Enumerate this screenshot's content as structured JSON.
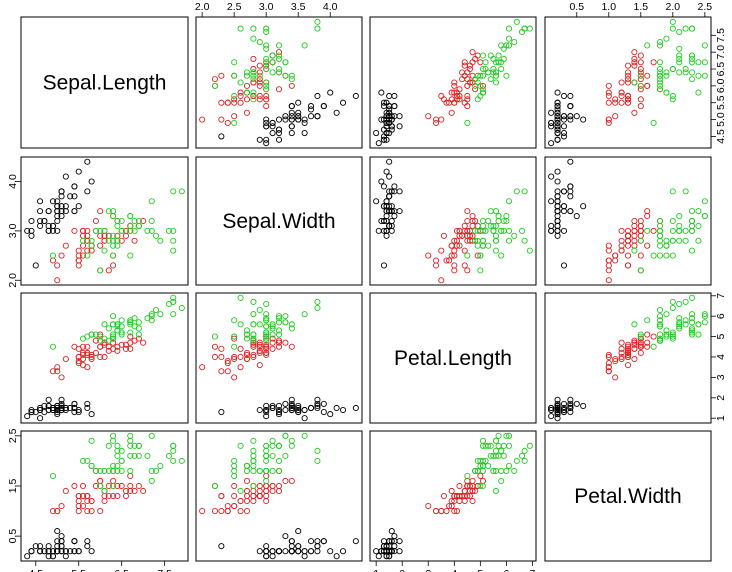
{
  "chart_data": {
    "type": "scatter",
    "layout": "pairs-matrix",
    "grid": false,
    "variables": [
      "Sepal.Length",
      "Sepal.Width",
      "Petal.Length",
      "Petal.Width"
    ],
    "ranges": {
      "Sepal.Length": [
        4.3,
        7.9
      ],
      "Sepal.Width": [
        2.0,
        4.4
      ],
      "Petal.Length": [
        1.0,
        6.9
      ],
      "Petal.Width": [
        0.1,
        2.5
      ]
    },
    "ticks": {
      "Sepal.Length": [
        4.5,
        5.5,
        6.5,
        7.5
      ],
      "Sepal.Width": [
        2.0,
        2.5,
        3.0,
        3.5,
        4.0
      ],
      "Petal.Length": [
        1,
        2,
        3,
        4,
        5,
        6,
        7
      ],
      "Petal.Width": [
        0.5,
        1.0,
        1.5,
        2.0,
        2.5
      ]
    },
    "tick_labels": {
      "top": {
        "Sepal.Width": [
          "2.0",
          "2.5",
          "3.0",
          "3.5",
          "4.0"
        ],
        "Petal.Width": [
          "0.5",
          "1.0",
          "1.5",
          "2.0",
          "2.5"
        ]
      },
      "bottom": {
        "Sepal.Length": [
          "4.5",
          "5.5",
          "6.5",
          "7.5"
        ],
        "Petal.Length": [
          "1",
          "2",
          "3",
          "4",
          "5",
          "6",
          "7"
        ]
      },
      "left": {
        "Sepal.Width": [
          "2.0",
          "3.0",
          "4.0"
        ],
        "Petal.Width": [
          "0.5",
          "1.5",
          "2.5"
        ]
      },
      "right": {
        "Sepal.Length": [
          "4.5",
          "5.0",
          "5.5",
          "6.0",
          "6.5",
          "7.0",
          "7.5"
        ],
        "Petal.Length": [
          "1",
          "2",
          "3",
          "4",
          "5",
          "6",
          "7"
        ]
      }
    },
    "colors": [
      "#000000",
      "#df2222",
      "#22cc22"
    ],
    "series": [
      {
        "color": "#000000",
        "columns": [
          "Sepal.Length",
          "Sepal.Width",
          "Petal.Length",
          "Petal.Width"
        ],
        "values": [
          [
            5.1,
            3.5,
            1.4,
            0.2
          ],
          [
            4.9,
            3.0,
            1.4,
            0.2
          ],
          [
            4.7,
            3.2,
            1.3,
            0.2
          ],
          [
            4.6,
            3.1,
            1.5,
            0.2
          ],
          [
            5.0,
            3.6,
            1.4,
            0.2
          ],
          [
            5.4,
            3.9,
            1.7,
            0.4
          ],
          [
            4.6,
            3.4,
            1.4,
            0.3
          ],
          [
            5.0,
            3.4,
            1.5,
            0.2
          ],
          [
            4.4,
            2.9,
            1.4,
            0.2
          ],
          [
            4.9,
            3.1,
            1.5,
            0.1
          ],
          [
            5.4,
            3.7,
            1.5,
            0.2
          ],
          [
            4.8,
            3.4,
            1.6,
            0.2
          ],
          [
            4.8,
            3.0,
            1.4,
            0.1
          ],
          [
            4.3,
            3.0,
            1.1,
            0.1
          ],
          [
            5.8,
            4.0,
            1.2,
            0.2
          ],
          [
            5.7,
            4.4,
            1.5,
            0.4
          ],
          [
            5.4,
            3.9,
            1.3,
            0.4
          ],
          [
            5.1,
            3.5,
            1.4,
            0.3
          ],
          [
            5.7,
            3.8,
            1.7,
            0.3
          ],
          [
            5.1,
            3.8,
            1.5,
            0.3
          ],
          [
            5.4,
            3.4,
            1.7,
            0.2
          ],
          [
            5.1,
            3.7,
            1.5,
            0.4
          ],
          [
            4.6,
            3.6,
            1.0,
            0.2
          ],
          [
            5.1,
            3.3,
            1.7,
            0.5
          ],
          [
            4.8,
            3.4,
            1.9,
            0.2
          ],
          [
            5.0,
            3.0,
            1.6,
            0.2
          ],
          [
            5.0,
            3.4,
            1.6,
            0.4
          ],
          [
            5.2,
            3.5,
            1.5,
            0.2
          ],
          [
            5.2,
            3.4,
            1.4,
            0.2
          ],
          [
            4.7,
            3.2,
            1.6,
            0.2
          ],
          [
            4.8,
            3.1,
            1.6,
            0.2
          ],
          [
            5.4,
            3.4,
            1.5,
            0.4
          ],
          [
            5.2,
            4.1,
            1.5,
            0.1
          ],
          [
            5.5,
            4.2,
            1.4,
            0.2
          ],
          [
            4.9,
            3.1,
            1.5,
            0.2
          ],
          [
            5.0,
            3.2,
            1.2,
            0.2
          ],
          [
            5.5,
            3.5,
            1.3,
            0.2
          ],
          [
            4.9,
            3.6,
            1.4,
            0.1
          ],
          [
            4.4,
            3.0,
            1.3,
            0.2
          ],
          [
            5.1,
            3.4,
            1.5,
            0.2
          ],
          [
            5.0,
            3.5,
            1.3,
            0.3
          ],
          [
            4.5,
            2.3,
            1.3,
            0.3
          ],
          [
            4.4,
            3.2,
            1.3,
            0.2
          ],
          [
            5.0,
            3.5,
            1.6,
            0.6
          ],
          [
            5.1,
            3.8,
            1.9,
            0.4
          ],
          [
            4.8,
            3.0,
            1.4,
            0.3
          ],
          [
            5.1,
            3.8,
            1.6,
            0.2
          ],
          [
            4.6,
            3.2,
            1.4,
            0.2
          ],
          [
            5.3,
            3.7,
            1.5,
            0.2
          ],
          [
            5.0,
            3.3,
            1.4,
            0.2
          ]
        ]
      },
      {
        "color": "#df2222",
        "columns": [
          "Sepal.Length",
          "Sepal.Width",
          "Petal.Length",
          "Petal.Width"
        ],
        "values": [
          [
            7.0,
            3.2,
            4.7,
            1.4
          ],
          [
            6.4,
            3.2,
            4.5,
            1.5
          ],
          [
            6.9,
            3.1,
            4.9,
            1.5
          ],
          [
            5.5,
            2.3,
            4.0,
            1.3
          ],
          [
            6.5,
            2.8,
            4.6,
            1.5
          ],
          [
            5.7,
            2.8,
            4.5,
            1.3
          ],
          [
            6.3,
            3.3,
            4.7,
            1.6
          ],
          [
            4.9,
            2.4,
            3.3,
            1.0
          ],
          [
            6.6,
            2.9,
            4.6,
            1.3
          ],
          [
            5.2,
            2.7,
            3.9,
            1.4
          ],
          [
            5.0,
            2.0,
            3.5,
            1.0
          ],
          [
            5.9,
            3.0,
            4.2,
            1.5
          ],
          [
            6.0,
            2.2,
            4.0,
            1.0
          ],
          [
            6.1,
            2.9,
            4.7,
            1.4
          ],
          [
            5.6,
            2.9,
            3.6,
            1.3
          ],
          [
            6.7,
            3.1,
            4.4,
            1.4
          ],
          [
            5.6,
            3.0,
            4.5,
            1.5
          ],
          [
            5.8,
            2.7,
            4.1,
            1.0
          ],
          [
            6.2,
            2.2,
            4.5,
            1.5
          ],
          [
            5.6,
            2.5,
            3.9,
            1.1
          ],
          [
            5.9,
            3.2,
            4.8,
            1.8
          ],
          [
            6.1,
            2.8,
            4.0,
            1.3
          ],
          [
            6.3,
            2.5,
            4.9,
            1.5
          ],
          [
            6.1,
            2.8,
            4.7,
            1.2
          ],
          [
            6.4,
            2.9,
            4.3,
            1.3
          ],
          [
            6.6,
            3.0,
            4.4,
            1.4
          ],
          [
            6.8,
            2.8,
            4.8,
            1.4
          ],
          [
            6.7,
            3.0,
            5.0,
            1.7
          ],
          [
            6.0,
            2.9,
            4.5,
            1.5
          ],
          [
            5.7,
            2.6,
            3.5,
            1.0
          ],
          [
            5.5,
            2.4,
            3.8,
            1.1
          ],
          [
            5.5,
            2.4,
            3.7,
            1.0
          ],
          [
            5.8,
            2.7,
            3.9,
            1.2
          ],
          [
            6.0,
            2.7,
            5.1,
            1.6
          ],
          [
            5.4,
            3.0,
            4.5,
            1.5
          ],
          [
            6.0,
            3.4,
            4.5,
            1.6
          ],
          [
            6.7,
            3.1,
            4.7,
            1.5
          ],
          [
            6.3,
            2.3,
            4.4,
            1.3
          ],
          [
            5.6,
            3.0,
            4.1,
            1.3
          ],
          [
            5.5,
            2.5,
            4.0,
            1.3
          ],
          [
            5.5,
            2.6,
            4.4,
            1.2
          ],
          [
            6.1,
            3.0,
            4.6,
            1.4
          ],
          [
            5.8,
            2.6,
            4.0,
            1.2
          ],
          [
            5.0,
            2.3,
            3.3,
            1.0
          ],
          [
            5.6,
            2.7,
            4.2,
            1.3
          ],
          [
            5.7,
            3.0,
            4.2,
            1.2
          ],
          [
            5.7,
            2.9,
            4.2,
            1.3
          ],
          [
            6.2,
            2.9,
            4.3,
            1.3
          ],
          [
            5.1,
            2.5,
            3.0,
            1.1
          ],
          [
            5.7,
            2.8,
            4.1,
            1.3
          ]
        ]
      },
      {
        "color": "#22cc22",
        "columns": [
          "Sepal.Length",
          "Sepal.Width",
          "Petal.Length",
          "Petal.Width"
        ],
        "values": [
          [
            6.3,
            3.3,
            6.0,
            2.5
          ],
          [
            5.8,
            2.7,
            5.1,
            1.9
          ],
          [
            7.1,
            3.0,
            5.9,
            2.1
          ],
          [
            6.3,
            2.9,
            5.6,
            1.8
          ],
          [
            6.5,
            3.0,
            5.8,
            2.2
          ],
          [
            7.6,
            3.0,
            6.6,
            2.1
          ],
          [
            4.9,
            2.5,
            4.5,
            1.7
          ],
          [
            7.3,
            2.9,
            6.3,
            1.8
          ],
          [
            6.7,
            2.5,
            5.8,
            1.8
          ],
          [
            7.2,
            3.6,
            6.1,
            2.5
          ],
          [
            6.5,
            3.2,
            5.1,
            2.0
          ],
          [
            6.4,
            2.7,
            5.3,
            1.9
          ],
          [
            6.8,
            3.0,
            5.5,
            2.1
          ],
          [
            5.7,
            2.5,
            5.0,
            2.0
          ],
          [
            5.8,
            2.8,
            5.1,
            2.4
          ],
          [
            6.4,
            3.2,
            5.3,
            2.3
          ],
          [
            6.5,
            3.0,
            5.5,
            1.8
          ],
          [
            7.7,
            3.8,
            6.7,
            2.2
          ],
          [
            7.7,
            2.6,
            6.9,
            2.3
          ],
          [
            6.0,
            2.2,
            5.0,
            1.5
          ],
          [
            6.9,
            3.2,
            5.7,
            2.3
          ],
          [
            5.6,
            2.8,
            4.9,
            2.0
          ],
          [
            7.7,
            2.8,
            6.7,
            2.0
          ],
          [
            6.3,
            2.7,
            4.9,
            1.8
          ],
          [
            6.7,
            3.3,
            5.7,
            2.1
          ],
          [
            7.2,
            3.2,
            6.0,
            1.8
          ],
          [
            6.2,
            2.8,
            4.8,
            1.8
          ],
          [
            6.1,
            3.0,
            4.9,
            1.8
          ],
          [
            6.4,
            2.8,
            5.6,
            2.1
          ],
          [
            7.2,
            3.0,
            5.8,
            1.6
          ],
          [
            7.4,
            2.8,
            6.1,
            1.9
          ],
          [
            7.9,
            3.8,
            6.4,
            2.0
          ],
          [
            6.4,
            2.8,
            5.6,
            2.2
          ],
          [
            6.3,
            2.8,
            5.1,
            1.5
          ],
          [
            6.1,
            2.6,
            5.6,
            1.4
          ],
          [
            7.7,
            3.0,
            6.1,
            2.3
          ],
          [
            6.3,
            3.4,
            5.6,
            2.4
          ],
          [
            6.4,
            3.1,
            5.5,
            1.8
          ],
          [
            6.0,
            3.0,
            4.8,
            1.8
          ],
          [
            6.9,
            3.1,
            5.4,
            2.1
          ],
          [
            6.7,
            3.1,
            5.6,
            2.4
          ],
          [
            6.9,
            3.1,
            5.1,
            2.3
          ],
          [
            5.8,
            2.7,
            5.1,
            1.9
          ],
          [
            6.8,
            3.2,
            5.9,
            2.3
          ],
          [
            6.7,
            3.3,
            5.7,
            2.5
          ],
          [
            6.7,
            3.0,
            5.2,
            2.3
          ],
          [
            6.3,
            2.5,
            5.0,
            1.9
          ],
          [
            6.5,
            3.0,
            5.2,
            2.0
          ],
          [
            6.2,
            3.4,
            5.4,
            2.3
          ],
          [
            5.9,
            3.0,
            5.1,
            1.8
          ]
        ]
      }
    ]
  }
}
